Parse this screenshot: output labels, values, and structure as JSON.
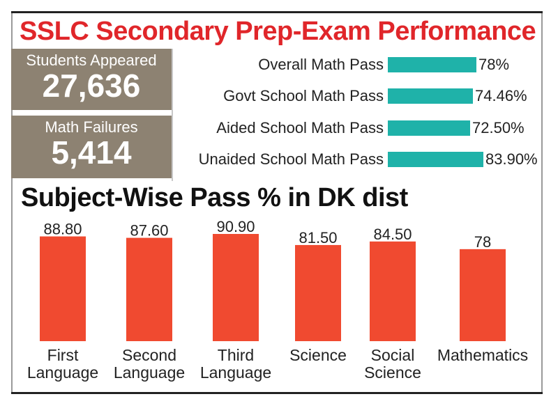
{
  "title": "SSLC Secondary Prep-Exam Performance",
  "stats": {
    "students_appeared_label": "Students Appeared",
    "students_appeared_value": "27,636",
    "math_failures_label": "Math Failures",
    "math_failures_value": "5,414"
  },
  "colors": {
    "title": "#e0262a",
    "stat_box": "#8d8272",
    "horizontal_bar": "#1fb2a9",
    "vertical_bar": "#f04a30"
  },
  "chart_data": [
    {
      "type": "bar",
      "orientation": "horizontal",
      "categories": [
        "Overall Math Pass",
        "Govt School Math Pass",
        "Aided School Math Pass",
        "Unaided School Math Pass"
      ],
      "values": [
        78,
        74.46,
        72.5,
        83.9
      ],
      "value_labels": [
        "78%",
        "74.46%",
        "72.50%",
        "83.90%"
      ],
      "title": "",
      "xlabel": "",
      "ylabel": "",
      "grid": false
    },
    {
      "type": "bar",
      "orientation": "vertical",
      "title": "Subject-Wise Pass % in DK dist",
      "categories": [
        [
          "First",
          "Language"
        ],
        [
          "Second",
          "Language"
        ],
        [
          "Third",
          "Language"
        ],
        [
          "Science"
        ],
        [
          "Social",
          "Science"
        ],
        [
          "Mathematics"
        ]
      ],
      "values": [
        88.8,
        87.6,
        90.9,
        81.5,
        84.5,
        78
      ],
      "value_labels": [
        "88.80",
        "87.60",
        "90.90",
        "81.50",
        "84.50",
        "78"
      ],
      "xlabel": "",
      "ylabel": "",
      "grid": false
    }
  ]
}
